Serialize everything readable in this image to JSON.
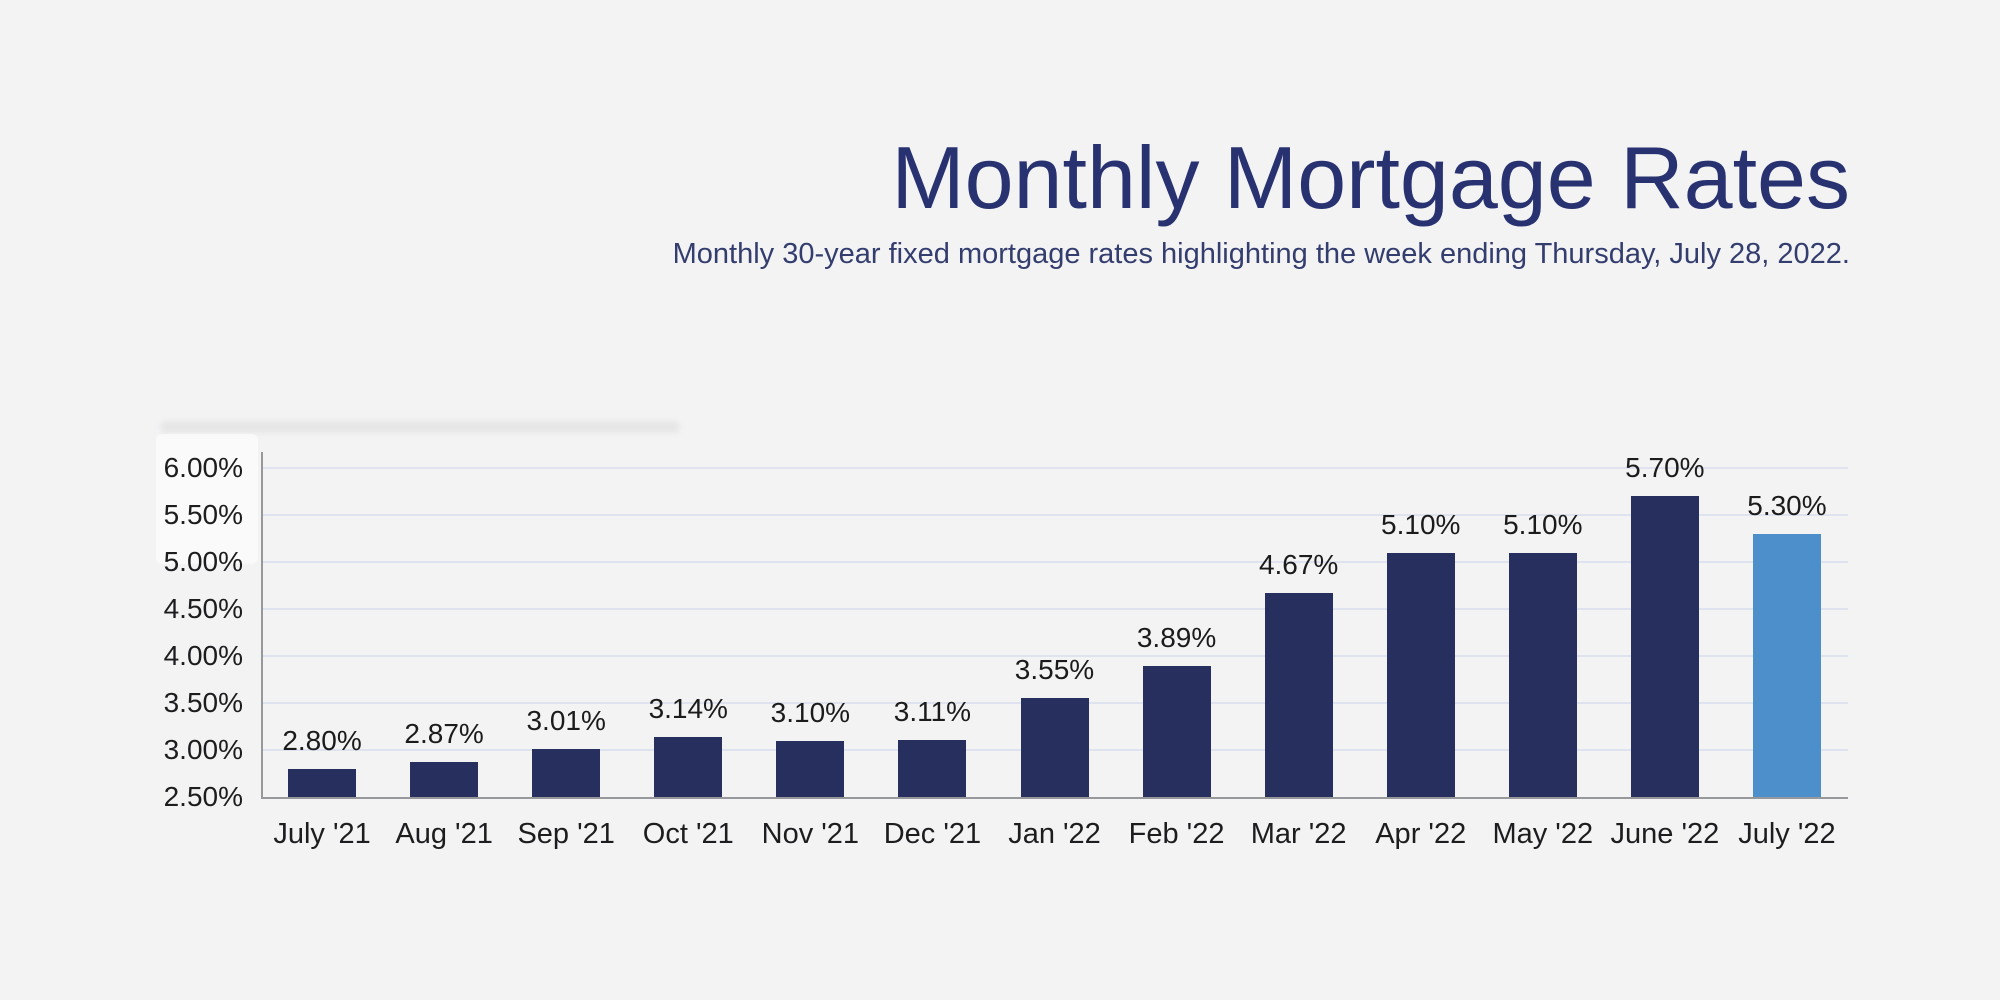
{
  "header": {
    "title": "Monthly Mortgage Rates",
    "subtitle": "Monthly 30-year fixed mortgage rates highlighting the week ending Thursday, July 28, 2022."
  },
  "colors": {
    "background": "#f3f3f4",
    "title_text": "#283270",
    "subtitle_text": "#333d6e",
    "bar": "#272f5f",
    "bar_highlight": "#4d8fca",
    "gridline": "#dee3ef",
    "axis": "#97989c",
    "tick_label": "#1d1d1f",
    "data_label": "#1b1b1b"
  },
  "chart_data": {
    "type": "bar",
    "title": "Monthly Mortgage Rates",
    "subtitle": "Monthly 30-year fixed mortgage rates highlighting the week ending Thursday, July 28, 2022.",
    "categories": [
      "July '21",
      "Aug '21",
      "Sep '21",
      "Oct '21",
      "Nov '21",
      "Dec '21",
      "Jan '22",
      "Feb '22",
      "Mar '22",
      "Apr '22",
      "May '22",
      "June '22",
      "July '22"
    ],
    "values": [
      2.8,
      2.87,
      3.01,
      3.14,
      3.1,
      3.11,
      3.55,
      3.89,
      4.67,
      5.1,
      5.1,
      5.7,
      5.3
    ],
    "data_labels": [
      "2.80%",
      "2.87%",
      "3.01%",
      "3.14%",
      "3.10%",
      "3.11%",
      "3.55%",
      "3.89%",
      "4.67%",
      "5.10%",
      "5.10%",
      "5.70%",
      "5.30%"
    ],
    "highlight_index": 12,
    "highlight_meaning": "week ending Thursday, July 28, 2022",
    "xlabel": "",
    "ylabel": "",
    "ylim": [
      2.5,
      6.0
    ],
    "ytick_step": 0.5,
    "ytick_labels": [
      "6.00%",
      "5.50%",
      "5.00%",
      "4.50%",
      "4.00%",
      "3.50%",
      "3.00%",
      "2.50%"
    ],
    "grid": true,
    "legend_position": "none"
  }
}
